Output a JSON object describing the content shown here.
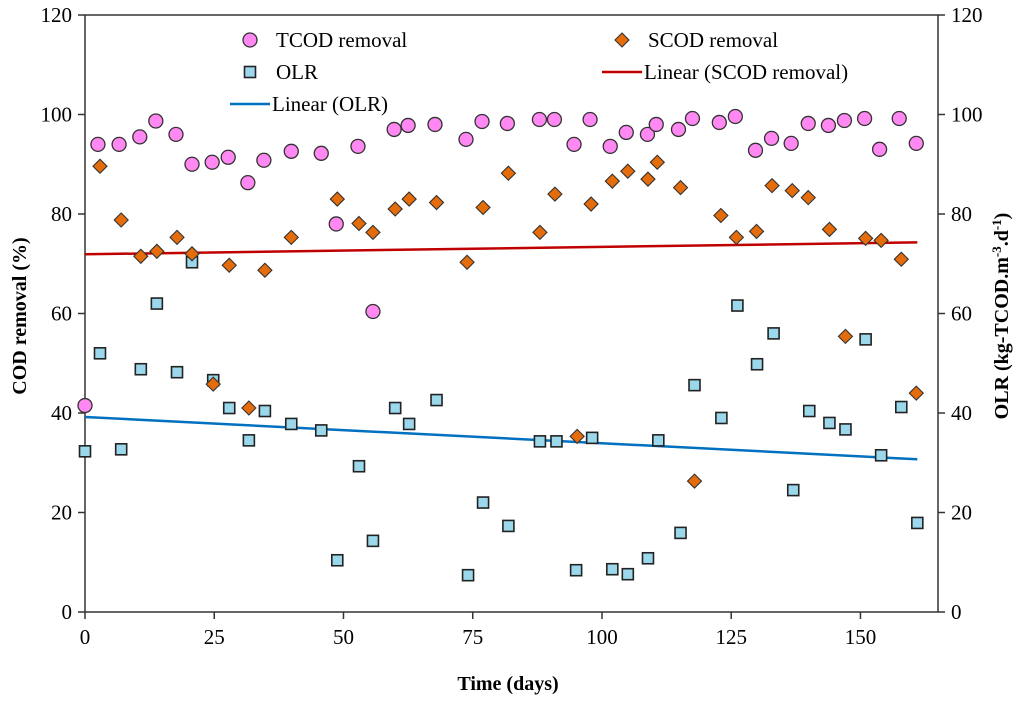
{
  "chart_data": {
    "type": "scatter",
    "title": "",
    "xlabel": "Time (days)",
    "ylabel_left": "COD removal (%)",
    "ylabel_right_parts": {
      "base": "OLR (kg-TCOD.m",
      "sup1": "-3",
      "mid": ".d",
      "sup2": "-1",
      "end": ")"
    },
    "xlim": [
      0,
      165
    ],
    "ylim_left": [
      0,
      120
    ],
    "ylim_right": [
      0,
      120
    ],
    "x_ticks": [
      0,
      25,
      50,
      75,
      100,
      125,
      150
    ],
    "y_ticks_left": [
      0,
      20,
      40,
      60,
      80,
      100,
      120
    ],
    "y_ticks_right": [
      0,
      20,
      40,
      60,
      80,
      100,
      120
    ],
    "grid": false,
    "legend_position": "top",
    "colors": {
      "tcod_fill": "#ff88f2",
      "scod_fill": "#e46c0a",
      "olr_fill": "#9bd8ec",
      "marker_edge": "#333333",
      "scod_trend": "#c00000",
      "olr_trend": "#0070c0"
    },
    "series": [
      {
        "name": "TCOD removal",
        "marker": "circle",
        "axis": "left",
        "x": [
          0,
          2.5,
          6.6,
          10.6,
          13.7,
          17.6,
          20.7,
          24.6,
          27.7,
          31.5,
          34.6,
          39.9,
          45.7,
          48.6,
          52.8,
          55.7,
          59.8,
          62.5,
          67.7,
          73.7,
          76.8,
          81.7,
          87.9,
          90.8,
          94.6,
          97.7,
          101.6,
          104.7,
          108.8,
          110.5,
          114.8,
          117.5,
          122.7,
          125.8,
          129.7,
          132.8,
          136.6,
          139.9,
          143.8,
          146.9,
          150.8,
          153.7,
          157.5,
          160.8
        ],
        "y": [
          41.5,
          94,
          94,
          95.5,
          98.7,
          96,
          90,
          90.4,
          91.4,
          86.3,
          90.8,
          92.6,
          92.2,
          78,
          93.6,
          60.4,
          97,
          97.8,
          98,
          95,
          98.6,
          98.2,
          99,
          99,
          94,
          99,
          93.6,
          96.4,
          96,
          98,
          97,
          99.2,
          98.4,
          99.6,
          92.8,
          95.2,
          94.2,
          98.2,
          97.8,
          98.8,
          99.2,
          93,
          99.2,
          94.2
        ]
      },
      {
        "name": "SCOD removal",
        "marker": "diamond",
        "axis": "left",
        "x": [
          2.9,
          7,
          10.8,
          13.9,
          17.8,
          20.7,
          24.8,
          27.9,
          31.7,
          34.8,
          39.9,
          48.8,
          53,
          55.7,
          60,
          62.7,
          68,
          73.9,
          77,
          81.9,
          88,
          90.9,
          95.2,
          97.9,
          102,
          105,
          108.9,
          110.7,
          115.2,
          117.9,
          123,
          126,
          129.9,
          132.9,
          136.8,
          139.9,
          144,
          147.1,
          151,
          154,
          157.9,
          160.8
        ],
        "y": [
          89.6,
          78.8,
          71.5,
          72.5,
          75.3,
          72,
          45.8,
          69.7,
          41,
          68.7,
          75.3,
          83,
          78.1,
          76.3,
          81,
          83,
          82.3,
          70.3,
          81.3,
          88.2,
          76.3,
          84,
          35.3,
          82,
          86.6,
          88.6,
          87,
          90.4,
          85.3,
          26.3,
          79.7,
          75.3,
          76.5,
          85.7,
          84.7,
          83.3,
          76.9,
          55.4,
          75.1,
          74.7,
          70.9,
          44
        ]
      },
      {
        "name": "OLR",
        "marker": "square",
        "axis": "right",
        "x": [
          0,
          2.9,
          7,
          10.8,
          13.9,
          17.8,
          20.7,
          24.8,
          27.9,
          31.7,
          34.8,
          39.9,
          45.7,
          48.8,
          53,
          55.7,
          60,
          62.7,
          68,
          74.1,
          77,
          81.9,
          88,
          91.2,
          95,
          98.1,
          102,
          105,
          108.9,
          110.9,
          115.2,
          117.9,
          123.1,
          126.2,
          130,
          133.2,
          137,
          140.1,
          144,
          147.1,
          151,
          154,
          157.9,
          161
        ],
        "y": [
          32.3,
          52,
          32.7,
          48.8,
          62,
          48.2,
          70.3,
          46.6,
          41,
          34.5,
          40.4,
          37.8,
          36.5,
          10.4,
          29.3,
          14.3,
          41,
          37.8,
          42.6,
          7.4,
          22,
          17.3,
          34.3,
          34.3,
          8.4,
          35,
          8.6,
          7.6,
          10.8,
          34.5,
          15.9,
          45.6,
          39,
          61.6,
          49.8,
          56,
          24.5,
          40.4,
          38,
          36.7,
          54.8,
          31.5,
          41.2,
          17.9
        ]
      },
      {
        "name": "Linear (SCOD removal)",
        "marker": "line",
        "axis": "left",
        "x": [
          0,
          161
        ],
        "y": [
          71.9,
          74.3
        ]
      },
      {
        "name": "Linear (OLR)",
        "marker": "line",
        "axis": "right",
        "x": [
          0,
          161
        ],
        "y": [
          39.2,
          30.7
        ]
      }
    ],
    "legend": [
      {
        "label": "TCOD removal",
        "marker": "circle"
      },
      {
        "label": "SCOD removal",
        "marker": "diamond"
      },
      {
        "label": "OLR",
        "marker": "square"
      },
      {
        "label": "Linear (SCOD removal)",
        "marker": "line-red"
      },
      {
        "label": "Linear (OLR)",
        "marker": "line-blue"
      }
    ]
  }
}
